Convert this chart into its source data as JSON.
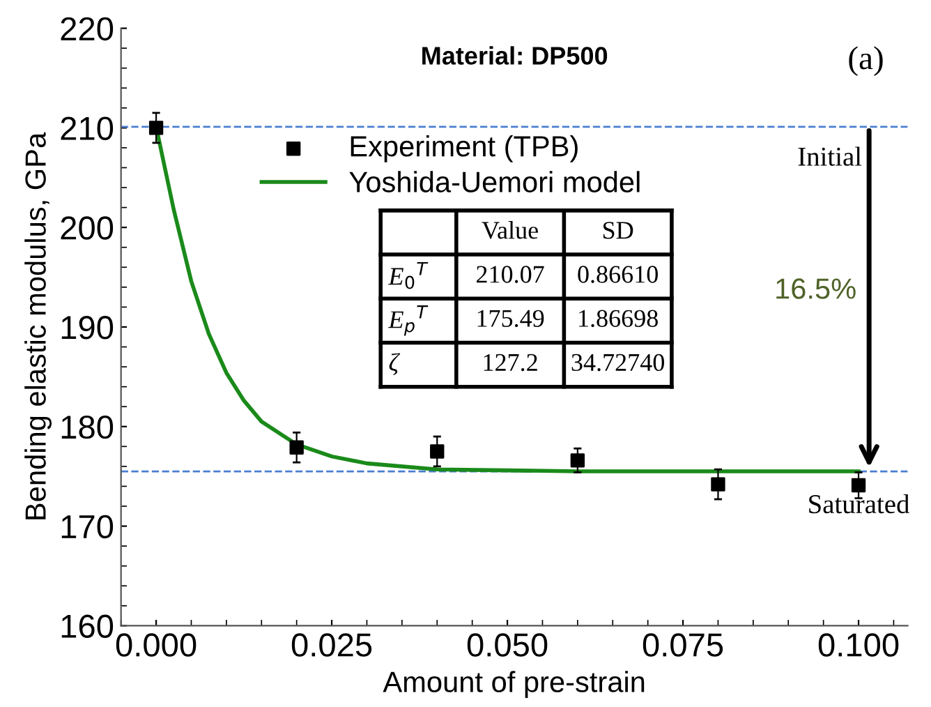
{
  "chart_data": {
    "type": "scatter",
    "title": "Material: DP500",
    "xlabel": "Amount of pre-strain",
    "ylabel": "Bending elastic modulus, GPa",
    "xlim": [
      -0.005,
      0.107
    ],
    "xticks": [
      {
        "value": 0,
        "label": "0.000"
      },
      {
        "value": 0.025,
        "label": "0.025"
      },
      {
        "value": 0.05,
        "label": "0.050"
      },
      {
        "value": 0.075,
        "label": "0.075"
      },
      {
        "value": 0.1,
        "label": "0.100"
      }
    ],
    "ylim": [
      160,
      220
    ],
    "yticks": [
      160,
      170,
      180,
      190,
      200,
      210,
      220
    ],
    "grid": false,
    "legend": "top",
    "series": [
      {
        "name": "Experiment (TPB)",
        "marker": "square",
        "color": "#000000",
        "x": [
          0,
          0.02,
          0.04,
          0.06,
          0.08,
          0.1
        ],
        "values": [
          210.0,
          177.9,
          177.5,
          176.6,
          174.2,
          174.1
        ],
        "errors": [
          1.5,
          1.5,
          1.5,
          1.2,
          1.5,
          1.3
        ]
      },
      {
        "name": "Yoshida-Uemori model",
        "type": "line",
        "marker": "none",
        "line_style": "solid",
        "color": "#1a8a1a",
        "x": [
          0,
          0.0025,
          0.005,
          0.0075,
          0.01,
          0.0125,
          0.015,
          0.02,
          0.025,
          0.03,
          0.04,
          0.05,
          0.06,
          0.08,
          0.1
        ],
        "values": [
          210.1,
          201.8,
          194.6,
          189.3,
          185.4,
          182.6,
          180.5,
          178.2,
          177.0,
          176.3,
          175.7,
          175.6,
          175.5,
          175.5,
          175.5
        ]
      }
    ],
    "ref_lines": [
      {
        "axis": "y",
        "value": 210.1,
        "label": "Initial",
        "color": "#4a7fd0",
        "line_style": "dashed"
      },
      {
        "axis": "y",
        "value": 175.5,
        "label": "Saturated",
        "color": "#4a7fd0",
        "line_style": "dashed"
      }
    ],
    "annotations": [
      "(a)",
      "16.5%",
      "Value",
      "SD",
      "E$_{0}$$^{T}$",
      "210.07",
      "0.86610",
      "E$_{p}$$^{T}$",
      "175.49",
      "1.86698",
      "ζ",
      "127.2",
      "34.72740"
    ]
  }
}
